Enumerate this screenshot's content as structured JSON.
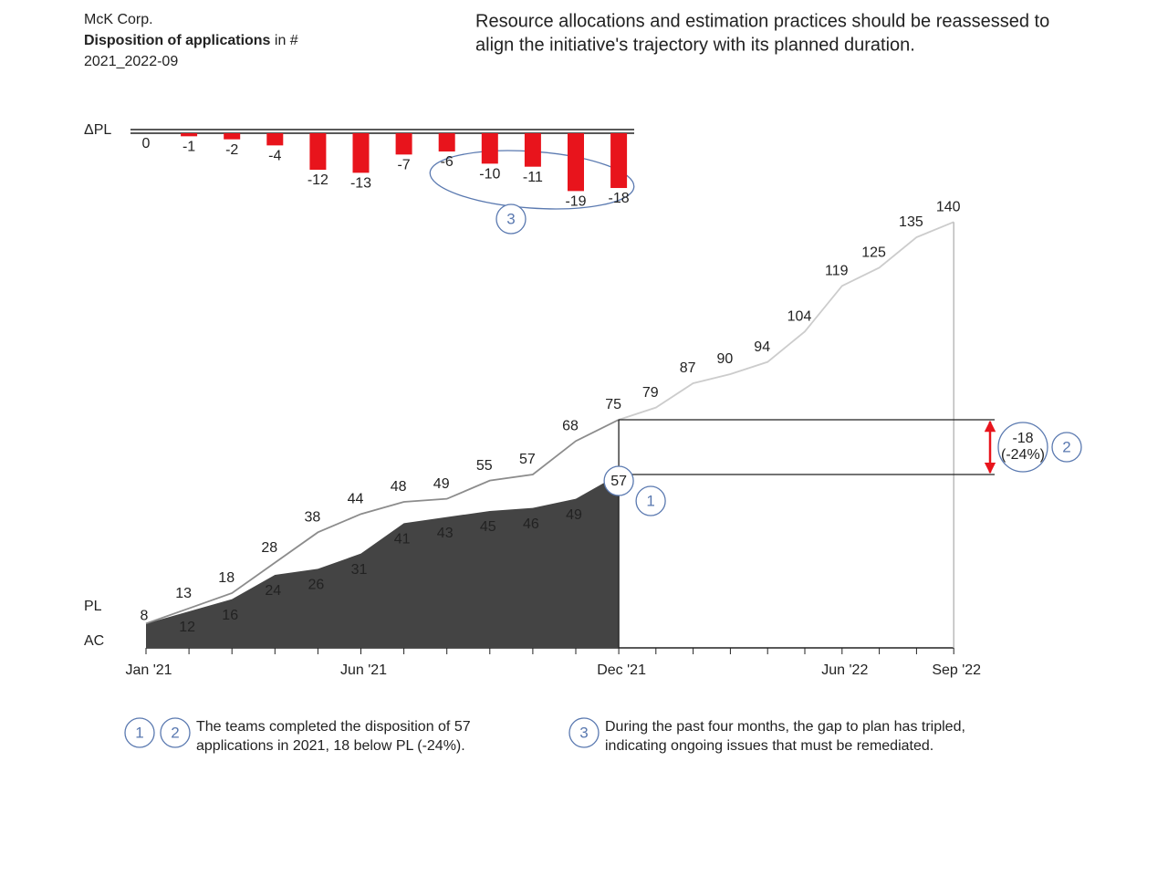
{
  "header": {
    "company": "McK Corp.",
    "title": "Disposition  of applications",
    "title_unit": "in #",
    "period": "2021_2022-09"
  },
  "message": [
    "Resource allocations and estimation practices should be reassessed to",
    "align the initiative's trajectory with its planned duration."
  ],
  "chart_data": [
    {
      "type": "bar",
      "series_name": "ΔPL",
      "color": "#e8141c",
      "values": [
        0,
        -1,
        -2,
        -4,
        -12,
        -13,
        -7,
        -6,
        -10,
        -11,
        -19,
        -18
      ],
      "ylim": [
        -20,
        0
      ]
    },
    {
      "type": "line",
      "categories": [
        "Jan '21",
        null,
        null,
        null,
        null,
        "Jun '21",
        null,
        null,
        null,
        null,
        null,
        "Dec '21",
        null,
        null,
        null,
        null,
        null,
        "Jun '22",
        null,
        null,
        "Sep '22"
      ],
      "series": [
        {
          "name": "PL",
          "color": "#8c8c8c",
          "future_color": "#cccccc",
          "values": [
            8,
            13,
            18,
            28,
            38,
            44,
            48,
            49,
            55,
            57,
            68,
            75,
            79,
            87,
            90,
            94,
            104,
            119,
            125,
            135,
            140
          ]
        },
        {
          "name": "AC",
          "color": "#444444",
          "values": [
            8,
            12,
            16,
            24,
            26,
            31,
            41,
            43,
            45,
            46,
            49,
            57,
            null,
            null,
            null,
            null,
            null,
            null,
            null,
            null,
            null
          ]
        }
      ],
      "ylim": [
        0,
        150
      ]
    }
  ],
  "gap": {
    "value": -18,
    "label": "(-24%)",
    "color": "#e8141c"
  },
  "callouts": [
    "1",
    "2",
    "3"
  ],
  "notes": [
    {
      "markers": [
        "1",
        "2"
      ],
      "lines": [
        "The teams completed the disposition of 57",
        "applications in 2021, 18 below PL (-24%)."
      ]
    },
    {
      "markers": [
        "3"
      ],
      "lines": [
        "During the past four months, the gap to plan has tripled,",
        "indicating ongoing issues that must be remediated."
      ]
    }
  ]
}
